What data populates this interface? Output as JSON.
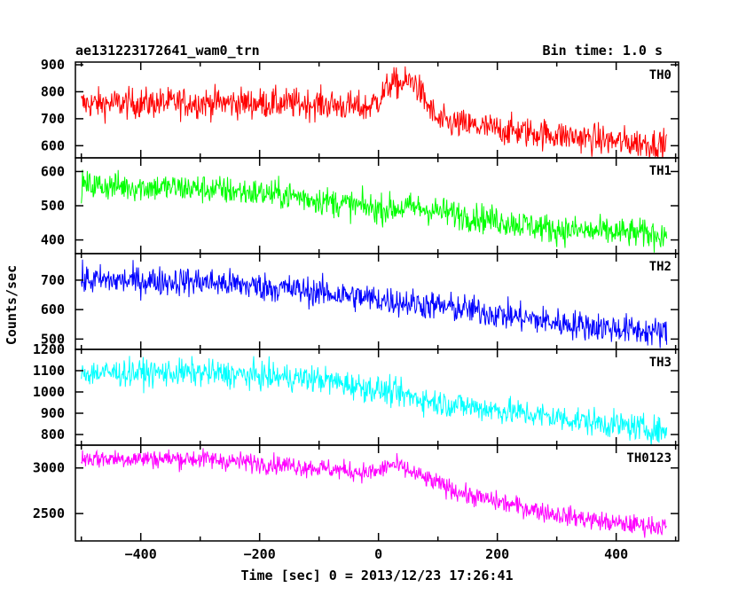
{
  "chart_data": {
    "type": "line",
    "title": "ae131223172641_wam0_trn",
    "subtitle": "Bin time: 1.0 s",
    "xlabel": "Time [sec] 0 = 2013/12/23 17:26:41",
    "ylabel": "Counts/sec",
    "xlim": [
      -510,
      505
    ],
    "x_range": [
      -500,
      485
    ],
    "x_ticks": [
      -400,
      -200,
      0,
      200,
      400
    ],
    "x_tick_labels": [
      "−400",
      "−200",
      "0",
      "200",
      "400"
    ],
    "series": [
      {
        "name": "TH0",
        "color": "#ff0000",
        "ylim": [
          555,
          910
        ],
        "y_ticks": [
          600,
          700,
          800,
          900
        ],
        "trend_x": [
          -500,
          -300,
          -100,
          -20,
          0,
          20,
          40,
          60,
          80,
          100,
          200,
          300,
          400,
          485
        ],
        "trend_y": [
          755,
          760,
          755,
          740,
          770,
          830,
          830,
          840,
          760,
          690,
          660,
          640,
          615,
          605
        ],
        "noise": 40
      },
      {
        "name": "TH1",
        "color": "#00ff00",
        "ylim": [
          360,
          640
        ],
        "y_ticks": [
          400,
          500,
          600
        ],
        "trend_x": [
          -500,
          -300,
          -150,
          0,
          60,
          150,
          300,
          485
        ],
        "trend_y": [
          560,
          550,
          530,
          490,
          495,
          470,
          430,
          415
        ],
        "noise": 30
      },
      {
        "name": "TH2",
        "color": "#0000ff",
        "ylim": [
          465,
          790
        ],
        "y_ticks": [
          500,
          600,
          700
        ],
        "trend_x": [
          -500,
          -300,
          -150,
          0,
          150,
          300,
          485
        ],
        "trend_y": [
          700,
          695,
          670,
          635,
          600,
          555,
          520
        ],
        "noise": 35
      },
      {
        "name": "TH3",
        "color": "#00ffff",
        "ylim": [
          750,
          1200
        ],
        "y_ticks": [
          800,
          900,
          1000,
          1100,
          1200
        ],
        "trend_x": [
          -500,
          -300,
          -100,
          0,
          100,
          300,
          485
        ],
        "trend_y": [
          1090,
          1090,
          1060,
          1010,
          950,
          880,
          815
        ],
        "noise": 45
      },
      {
        "name": "TH0123",
        "color": "#ff00ff",
        "ylim": [
          2200,
          3250
        ],
        "y_ticks": [
          2500,
          3000
        ],
        "trend_x": [
          -500,
          -300,
          -150,
          -20,
          0,
          20,
          40,
          80,
          150,
          300,
          400,
          485
        ],
        "trend_y": [
          3105,
          3100,
          3030,
          2950,
          2960,
          3040,
          3000,
          2880,
          2700,
          2490,
          2390,
          2360
        ],
        "noise": 75
      }
    ]
  }
}
